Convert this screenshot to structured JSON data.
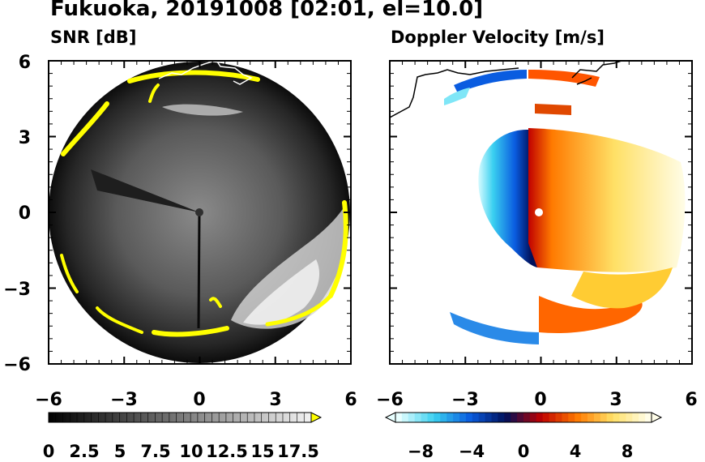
{
  "title": "Fukuoka, 20191008 [02:01, el=10.0]",
  "chart_data": [
    {
      "type": "heatmap",
      "title": "SNR [dB]",
      "xlim": [
        -6,
        6
      ],
      "ylim": [
        -6,
        6
      ],
      "xticks": [
        "−6",
        "−3",
        "0",
        "3",
        "6"
      ],
      "yticks": [
        "6",
        "3",
        "0",
        "−3",
        "−6"
      ],
      "colorbar": {
        "min": 0,
        "max": 18.5,
        "extend": "max",
        "ticks": [
          "0",
          "2.5",
          "5",
          "7.5",
          "10",
          "12.5",
          "15",
          "17.5"
        ],
        "colors": [
          "#000000",
          "#ffffff",
          "#ffff00"
        ]
      }
    },
    {
      "type": "heatmap",
      "title": "Doppler Velocity [m/s]",
      "xlim": [
        -6,
        6
      ],
      "ylim": [
        -6,
        6
      ],
      "xticks": [
        "−6",
        "−3",
        "0",
        "3",
        "6"
      ],
      "yticks": [],
      "colorbar": {
        "min": -10,
        "max": 10,
        "extend": "both",
        "ticks": [
          "−8",
          "−4",
          "0",
          "4",
          "8"
        ],
        "colors": [
          "#e8ffff",
          "#3ad0f0",
          "#0a5ce0",
          "#00105a",
          "#c00000",
          "#ff7a00",
          "#ffe066",
          "#fffde8"
        ]
      }
    }
  ]
}
